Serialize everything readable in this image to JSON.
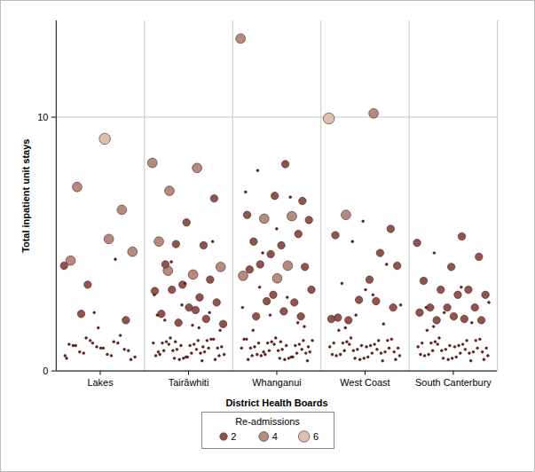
{
  "chart_data": {
    "type": "scatter",
    "x_label": "District Health Boards",
    "y_label": "Total inpatient unit stays",
    "categories": [
      "Lakes",
      "Tairāwhiti",
      "Whanganui",
      "West Coast",
      "South Canterbury"
    ],
    "ylim": [
      0,
      13.8
    ],
    "yticks": [
      0,
      10
    ],
    "grid": true,
    "size_legend": {
      "title": "Re-admissions",
      "values": [
        2,
        4,
        6
      ]
    },
    "groups": [
      {
        "category": "Lakes",
        "values": [
          4.15,
          5.2,
          2.25,
          2.0,
          1.7,
          4.35,
          4.4,
          3.4,
          4.7,
          9.15,
          7.25,
          6.35,
          2.3,
          0.5,
          0.6,
          0.7,
          0.8,
          0.9,
          1.0,
          1.1,
          1.2,
          0.55,
          0.65,
          0.75,
          0.85,
          0.95,
          1.05,
          1.15,
          1.3,
          0.45,
          0.9,
          1.0,
          1.4,
          1.1,
          0.6
        ],
        "readmissions": [
          2,
          4,
          2,
          2,
          0,
          4,
          0,
          2,
          4,
          6,
          4,
          4,
          0,
          0,
          0,
          0,
          0,
          0,
          0,
          0,
          0,
          0,
          0,
          0,
          0,
          0,
          0,
          0,
          0,
          0,
          0,
          0,
          0,
          0,
          0
        ]
      },
      {
        "category": "Tairāwhiti",
        "values": [
          8.2,
          8.0,
          7.1,
          6.8,
          5.85,
          5.1,
          4.95,
          5.0,
          4.1,
          3.8,
          4.2,
          3.6,
          3.4,
          3.15,
          2.9,
          3.2,
          2.7,
          2.5,
          2.25,
          2.05,
          1.9,
          1.85,
          2.4,
          3.95,
          5.1,
          3.45,
          2.2,
          0.4,
          0.5,
          0.6,
          0.7,
          0.8,
          0.9,
          1.0,
          1.1,
          1.2,
          1.3,
          0.45,
          0.55,
          0.65,
          0.75,
          0.85,
          0.95,
          1.05,
          1.15,
          1.25,
          0.5,
          0.6,
          0.7,
          0.8,
          0.9,
          1.0,
          1.1,
          1.2,
          0.45,
          0.65,
          0.85,
          1.05,
          1.25,
          0.55,
          0.75,
          0.95,
          1.15,
          1.6,
          1.8,
          2.0,
          2.3,
          2.6,
          3.0,
          1.7,
          4.3
        ],
        "readmissions": [
          4,
          4,
          4,
          2,
          2,
          4,
          2,
          2,
          4,
          4,
          2,
          2,
          2,
          2,
          2,
          2,
          2,
          2,
          2,
          2,
          2,
          2,
          2,
          4,
          0,
          0,
          0,
          0,
          0,
          0,
          0,
          0,
          0,
          0,
          0,
          0,
          0,
          0,
          0,
          0,
          0,
          0,
          0,
          0,
          0,
          0,
          0,
          0,
          0,
          0,
          0,
          0,
          0,
          0,
          0,
          0,
          0,
          0,
          0,
          0,
          0,
          0,
          0,
          0,
          0,
          0,
          0,
          0,
          0,
          0,
          0
        ]
      },
      {
        "category": "Whanganui",
        "values": [
          13.1,
          8.15,
          7.9,
          6.7,
          6.9,
          6.15,
          6.1,
          6.0,
          5.95,
          4.95,
          5.1,
          5.4,
          4.6,
          3.75,
          4.15,
          4.2,
          4.1,
          3.65,
          4.0,
          2.7,
          2.75,
          3.2,
          2.35,
          2.15,
          2.15,
          3.0,
          7.05,
          6.85,
          4.65,
          0.4,
          0.5,
          0.6,
          0.7,
          0.8,
          0.9,
          1.0,
          1.1,
          1.2,
          1.3,
          0.45,
          0.55,
          0.65,
          0.75,
          0.85,
          0.95,
          1.05,
          1.15,
          1.25,
          0.5,
          0.6,
          0.7,
          0.8,
          0.9,
          1.0,
          1.1,
          1.2,
          0.45,
          0.65,
          0.85,
          1.05,
          1.25,
          0.55,
          0.75,
          0.95,
          1.15,
          1.6,
          1.9,
          2.2,
          2.5,
          2.9,
          3.3,
          1.75,
          5.6
        ],
        "readmissions": [
          4,
          2,
          0,
          2,
          2,
          2,
          4,
          4,
          2,
          2,
          2,
          2,
          2,
          4,
          4,
          2,
          2,
          4,
          2,
          2,
          2,
          2,
          2,
          2,
          2,
          2,
          0,
          0,
          0,
          0,
          0,
          0,
          0,
          0,
          0,
          0,
          0,
          0,
          0,
          0,
          0,
          0,
          0,
          0,
          0,
          0,
          0,
          0,
          0,
          0,
          0,
          0,
          0,
          0,
          0,
          0,
          0,
          0,
          0,
          0,
          0,
          0,
          0,
          0,
          0,
          0,
          0,
          0,
          0,
          0,
          0,
          0,
          0
        ]
      },
      {
        "category": "West Coast",
        "values": [
          9.95,
          10.15,
          6.15,
          5.6,
          5.9,
          5.35,
          4.65,
          5.1,
          4.15,
          3.6,
          3.45,
          4.2,
          2.8,
          2.05,
          2.75,
          2.0,
          2.5,
          3.2,
          2.1,
          0.4,
          0.5,
          0.6,
          0.7,
          0.8,
          0.9,
          1.0,
          1.1,
          1.2,
          1.3,
          0.45,
          0.55,
          0.65,
          0.75,
          0.85,
          0.95,
          1.05,
          1.15,
          1.25,
          0.5,
          0.6,
          0.7,
          0.8,
          0.9,
          1.0,
          1.1,
          1.2,
          0.45,
          0.65,
          0.85,
          1.05,
          0.75,
          0.95,
          1.6,
          1.85,
          2.2,
          2.6,
          3.0,
          1.7
        ],
        "readmissions": [
          6,
          4,
          4,
          2,
          0,
          2,
          2,
          0,
          2,
          2,
          0,
          0,
          2,
          2,
          2,
          2,
          2,
          0,
          2,
          0,
          0,
          0,
          0,
          0,
          0,
          0,
          0,
          0,
          0,
          0,
          0,
          0,
          0,
          0,
          0,
          0,
          0,
          0,
          0,
          0,
          0,
          0,
          0,
          0,
          0,
          0,
          0,
          0,
          0,
          0,
          0,
          0,
          0,
          0,
          0,
          0,
          0,
          0
        ]
      },
      {
        "category": "South Canterbury",
        "values": [
          5.05,
          5.3,
          4.65,
          4.5,
          4.1,
          3.55,
          3.2,
          3.2,
          3.0,
          3.0,
          2.5,
          2.5,
          2.5,
          2.3,
          2.05,
          2.0,
          2.0,
          2.15,
          2.5,
          0.4,
          0.5,
          0.6,
          0.7,
          0.8,
          0.9,
          1.0,
          1.1,
          1.2,
          1.3,
          0.45,
          0.55,
          0.65,
          0.75,
          0.85,
          0.95,
          1.05,
          1.15,
          1.25,
          0.5,
          0.6,
          0.7,
          0.8,
          0.9,
          1.0,
          1.1,
          1.2,
          0.45,
          0.65,
          0.85,
          1.05,
          0.75,
          0.95,
          1.6,
          1.9,
          2.3,
          2.7,
          3.3,
          1.75
        ],
        "readmissions": [
          2,
          2,
          0,
          2,
          2,
          2,
          2,
          2,
          2,
          2,
          2,
          2,
          2,
          2,
          2,
          2,
          2,
          2,
          0,
          0,
          0,
          0,
          0,
          0,
          0,
          0,
          0,
          0,
          0,
          0,
          0,
          0,
          0,
          0,
          0,
          0,
          0,
          0,
          0,
          0,
          0,
          0,
          0,
          0,
          0,
          0,
          0,
          0,
          0,
          0,
          0,
          0,
          0,
          0,
          0,
          0,
          0,
          0
        ]
      }
    ]
  }
}
